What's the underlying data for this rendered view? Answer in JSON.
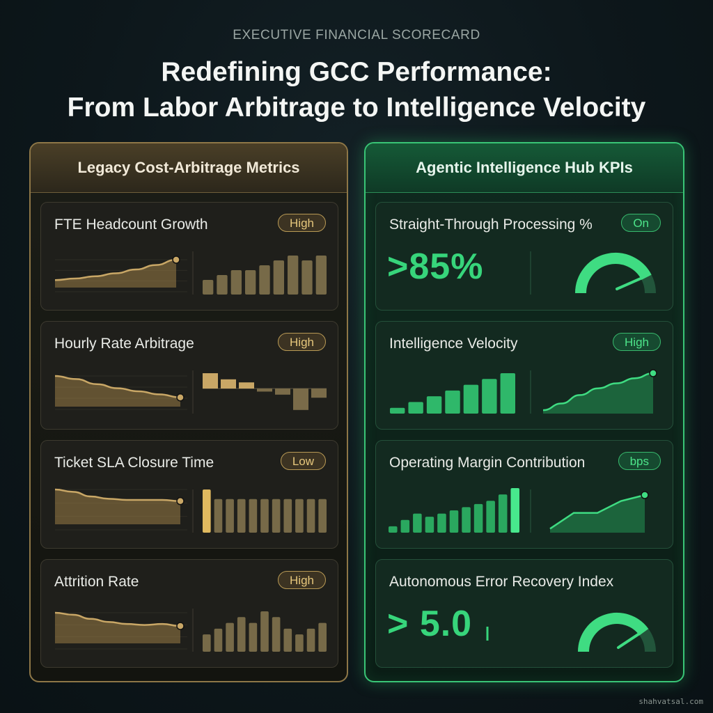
{
  "header": {
    "eyebrow": "EXECUTIVE FINANCIAL SCORECARD",
    "title_line1": "Redefining GCC Performance:",
    "title_line2": "From Labor Arbitrage to Intelligence Velocity"
  },
  "legacy": {
    "title": "Legacy Cost-Arbitrage Metrics",
    "cards": [
      {
        "label": "FTE Headcount Growth",
        "badge": "High"
      },
      {
        "label": "Hourly Rate Arbitrage",
        "badge": "High"
      },
      {
        "label": "Ticket SLA Closure Time",
        "badge": "Low"
      },
      {
        "label": "Attrition Rate",
        "badge": "High"
      }
    ]
  },
  "agentic": {
    "title": "Agentic Intelligence Hub KPIs",
    "cards": [
      {
        "label": "Straight-Through Processing %",
        "badge": "On",
        "value": ">85%",
        "gauge_level": 0.85
      },
      {
        "label": "Intelligence Velocity",
        "badge": "High"
      },
      {
        "label": "Operating Margin Contribution",
        "badge": "bps"
      },
      {
        "label": "Autonomous Error Recovery Index",
        "value": "> 5.0",
        "gauge_level": 0.8
      }
    ]
  },
  "footer": {
    "credit": "shahvatsal.com"
  },
  "chart_data": [
    {
      "type": "area",
      "name": "fte-trend",
      "values": [
        10,
        12,
        15,
        19,
        24,
        30,
        37
      ]
    },
    {
      "type": "bar",
      "name": "fte-bars",
      "values": [
        3,
        4,
        5,
        5,
        6,
        7,
        8,
        7,
        8
      ]
    },
    {
      "type": "area",
      "name": "rate-trend",
      "values": [
        30,
        27,
        22,
        18,
        15,
        12,
        9
      ]
    },
    {
      "type": "bar",
      "name": "rate-variance-bars",
      "values": [
        5,
        3,
        2,
        -1,
        -2,
        -7,
        -3
      ]
    },
    {
      "type": "area",
      "name": "sla-trend",
      "values": [
        30,
        28,
        24,
        22,
        21,
        21,
        21,
        20
      ]
    },
    {
      "type": "bar",
      "name": "sla-bars",
      "values": [
        9,
        7,
        7,
        7,
        7,
        7,
        7,
        7,
        7,
        7,
        7
      ],
      "highlight_index": 0
    },
    {
      "type": "area",
      "name": "attrition-trend",
      "values": [
        30,
        28,
        24,
        21,
        19,
        18,
        19,
        17
      ]
    },
    {
      "type": "bar",
      "name": "attrition-bars",
      "values": [
        3,
        4,
        5,
        6,
        5,
        7,
        6,
        4,
        3,
        4,
        5
      ]
    },
    {
      "type": "bar",
      "name": "velocity-bars",
      "values": [
        1,
        2,
        3,
        4,
        5,
        6,
        7
      ]
    },
    {
      "type": "area",
      "name": "velocity-trend",
      "values": [
        2,
        6,
        11,
        15,
        18,
        21,
        24
      ]
    },
    {
      "type": "bar",
      "name": "margin-bars",
      "values": [
        1,
        2,
        3,
        2.5,
        3,
        3.5,
        4,
        4.5,
        5,
        6,
        7
      ]
    },
    {
      "type": "area",
      "name": "margin-trend",
      "values": [
        2,
        10,
        10,
        16,
        19
      ]
    }
  ]
}
